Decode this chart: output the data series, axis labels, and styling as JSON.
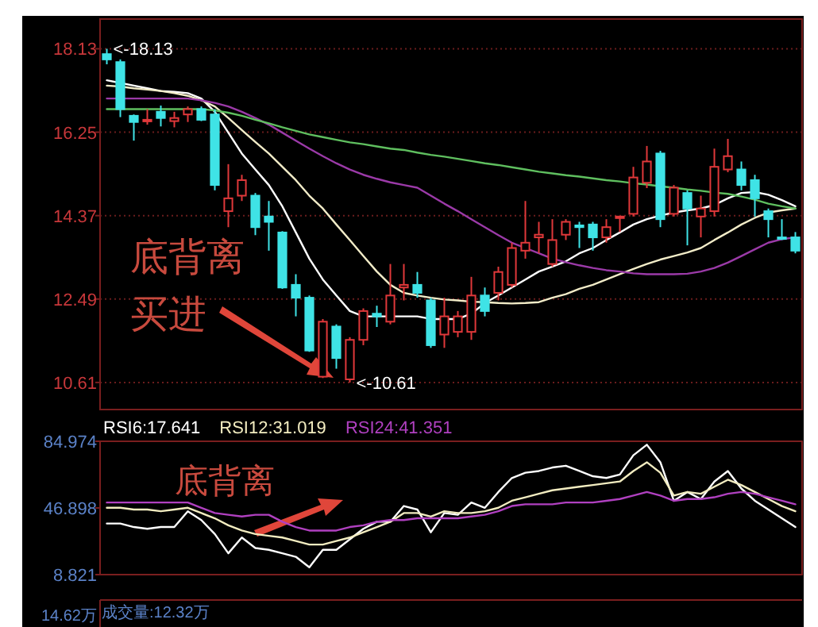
{
  "chart_data": [
    {
      "type": "candlestick",
      "categories": [
        null,
        null,
        null,
        null,
        null,
        null,
        null,
        null,
        null,
        null,
        null,
        null,
        null,
        null,
        null,
        null,
        null,
        null,
        null,
        null,
        null,
        null,
        null,
        null,
        null,
        null,
        null,
        null,
        null,
        null,
        null,
        null,
        null,
        null,
        null,
        null,
        null,
        null,
        null,
        null,
        null,
        null,
        null,
        null,
        null,
        null,
        null,
        null,
        null,
        null,
        null,
        null
      ],
      "ohlc": [
        [
          18.01,
          18.13,
          17.78,
          17.89
        ],
        [
          17.83,
          17.89,
          16.59,
          16.77
        ],
        [
          16.62,
          16.65,
          16.06,
          16.48
        ],
        [
          16.5,
          16.77,
          16.42,
          16.53
        ],
        [
          16.71,
          16.85,
          16.38,
          16.57
        ],
        [
          16.5,
          16.71,
          16.36,
          16.57
        ],
        [
          16.65,
          16.83,
          16.48,
          16.77
        ],
        [
          16.77,
          16.83,
          16.5,
          16.53
        ],
        [
          16.65,
          16.77,
          14.94,
          15.06
        ],
        [
          14.47,
          15.53,
          14.11,
          14.76
        ],
        [
          14.82,
          15.29,
          14.7,
          15.17
        ],
        [
          14.82,
          14.88,
          13.93,
          14.11
        ],
        [
          14.35,
          14.7,
          13.58,
          14.23
        ],
        [
          13.99,
          14.02,
          12.72,
          12.75
        ],
        [
          12.81,
          13.05,
          12.1,
          12.52
        ],
        [
          12.52,
          12.57,
          11.3,
          11.33
        ],
        [
          10.74,
          12.04,
          10.71,
          11.98
        ],
        [
          11.87,
          11.92,
          10.92,
          11.16
        ],
        [
          10.68,
          11.63,
          10.61,
          11.57
        ],
        [
          11.57,
          12.28,
          11.45,
          12.22
        ],
        [
          12.16,
          12.34,
          11.86,
          12.1
        ],
        [
          11.98,
          13.28,
          11.92,
          12.57
        ],
        [
          12.75,
          13.28,
          12.46,
          12.81
        ],
        [
          12.81,
          13.1,
          12.52,
          12.63
        ],
        [
          12.46,
          12.52,
          11.39,
          11.45
        ],
        [
          11.69,
          12.52,
          11.39,
          12.1
        ],
        [
          11.75,
          12.22,
          11.63,
          12.1
        ],
        [
          11.75,
          12.99,
          11.57,
          12.57
        ],
        [
          12.57,
          12.75,
          12.1,
          12.22
        ],
        [
          12.63,
          13.22,
          12.46,
          13.1
        ],
        [
          12.81,
          13.76,
          12.75,
          13.64
        ],
        [
          13.58,
          14.7,
          13.4,
          13.76
        ],
        [
          13.88,
          14.23,
          13.52,
          13.94
        ],
        [
          13.28,
          14.29,
          13.22,
          13.82
        ],
        [
          13.94,
          14.29,
          13.82,
          14.23
        ],
        [
          14.15,
          14.23,
          13.64,
          14.11
        ],
        [
          14.17,
          14.23,
          13.58,
          13.88
        ],
        [
          13.88,
          14.29,
          13.76,
          14.11
        ],
        [
          14.33,
          14.35,
          14.0,
          14.35
        ],
        [
          14.41,
          15.47,
          14.35,
          15.23
        ],
        [
          15.11,
          15.94,
          14.99,
          15.59
        ],
        [
          15.77,
          15.83,
          14.11,
          14.29
        ],
        [
          14.41,
          15.06,
          14.35,
          15.0
        ],
        [
          14.88,
          14.94,
          13.7,
          14.53
        ],
        [
          14.35,
          14.82,
          13.88,
          14.53
        ],
        [
          14.47,
          15.88,
          14.35,
          15.47
        ],
        [
          15.41,
          16.1,
          15.35,
          15.71
        ],
        [
          15.41,
          15.59,
          14.94,
          15.06
        ],
        [
          15.17,
          15.29,
          14.35,
          14.76
        ],
        [
          14.47,
          14.53,
          13.88,
          14.29
        ],
        [
          13.88,
          14.29,
          13.82,
          13.86
        ],
        [
          13.88,
          14.0,
          13.52,
          13.58
        ]
      ],
      "series": [
        {
          "type": "line",
          "color": "#ffffff",
          "values": [
            17.42,
            17.36,
            17.3,
            17.24,
            17.18,
            17.16,
            17.13,
            17.01,
            16.71,
            16.24,
            15.77,
            15.41,
            15.06,
            14.58,
            13.99,
            13.4,
            12.93,
            12.57,
            12.22,
            12.1,
            12.1,
            12.1,
            12.1,
            12.1,
            12.04,
            12.04,
            12.04,
            12.16,
            12.4,
            12.57,
            12.75,
            12.93,
            13.11,
            13.22,
            13.34,
            13.52,
            13.64,
            13.82,
            13.99,
            14.17,
            14.29,
            14.37,
            14.44,
            14.49,
            14.53,
            14.61,
            14.76,
            14.88,
            14.9,
            14.84,
            14.72,
            14.58
          ]
        },
        {
          "type": "line",
          "color": "#f2ecc8",
          "values": [
            17.3,
            17.28,
            17.24,
            17.21,
            17.18,
            17.13,
            17.07,
            16.97,
            16.83,
            16.57,
            16.3,
            16.03,
            15.77,
            15.47,
            15.17,
            14.82,
            14.53,
            14.17,
            13.82,
            13.46,
            13.11,
            12.81,
            12.63,
            12.57,
            12.52,
            12.48,
            12.46,
            12.43,
            12.42,
            12.4,
            12.39,
            12.4,
            12.42,
            12.52,
            12.6,
            12.72,
            12.81,
            12.93,
            13.05,
            13.17,
            13.28,
            13.38,
            13.46,
            13.54,
            13.64,
            13.82,
            13.99,
            14.17,
            14.32,
            14.44,
            14.49,
            14.53
          ]
        },
        {
          "type": "line",
          "color": "#9b3aa8",
          "values": [
            17.01,
            17.01,
            17.01,
            17.01,
            17.01,
            17.01,
            17.01,
            16.97,
            16.91,
            16.83,
            16.71,
            16.57,
            16.42,
            16.24,
            16.06,
            15.88,
            15.71,
            15.55,
            15.41,
            15.29,
            15.2,
            15.12,
            15.06,
            15.0,
            14.82,
            14.64,
            14.47,
            14.29,
            14.11,
            13.93,
            13.76,
            13.64,
            13.52,
            13.4,
            13.32,
            13.25,
            13.19,
            13.14,
            13.11,
            13.07,
            13.05,
            13.05,
            13.05,
            13.06,
            13.11,
            13.19,
            13.31,
            13.46,
            13.61,
            13.76,
            13.84,
            13.88
          ]
        },
        {
          "type": "line",
          "color": "#5fbf5f",
          "values": [
            16.77,
            16.77,
            16.77,
            16.77,
            16.77,
            16.77,
            16.77,
            16.77,
            16.74,
            16.69,
            16.62,
            16.53,
            16.45,
            16.36,
            16.28,
            16.2,
            16.14,
            16.08,
            16.02,
            15.98,
            15.93,
            15.88,
            15.85,
            15.79,
            15.74,
            15.7,
            15.65,
            15.6,
            15.55,
            15.51,
            15.46,
            15.41,
            15.36,
            15.32,
            15.28,
            15.25,
            15.21,
            15.17,
            15.14,
            15.1,
            15.07,
            15.03,
            15.0,
            14.96,
            14.93,
            14.89,
            14.86,
            14.8,
            14.73,
            14.64,
            14.58,
            14.53
          ]
        }
      ],
      "ylim": [
        10.0,
        18.8
      ],
      "yticks": [
        10.61,
        12.49,
        14.37,
        16.25,
        18.13
      ],
      "grid": "y",
      "annotations": [
        "<-18.13",
        "<-10.61",
        "底背离",
        "买进"
      ]
    },
    {
      "type": "line",
      "categories": [
        null,
        null,
        null,
        null,
        null,
        null,
        null,
        null,
        null,
        null,
        null,
        null,
        null,
        null,
        null,
        null,
        null,
        null,
        null,
        null,
        null,
        null,
        null,
        null,
        null,
        null,
        null,
        null,
        null,
        null,
        null,
        null,
        null,
        null,
        null,
        null,
        null,
        null,
        null,
        null,
        null,
        null,
        null,
        null,
        null,
        null,
        null,
        null,
        null,
        null,
        null,
        null
      ],
      "series": [
        {
          "name": "RSI6:17.641",
          "color": "#ffffff",
          "values": [
            38,
            38,
            36,
            35,
            36,
            36,
            45,
            40,
            32,
            21,
            30,
            24,
            23,
            21,
            19,
            13,
            23,
            23,
            29,
            35,
            39,
            39,
            48,
            46,
            33,
            44,
            43,
            50,
            47,
            56,
            64,
            67,
            68,
            70,
            71,
            68,
            65,
            64,
            66,
            77,
            83,
            73,
            51,
            56,
            52,
            62,
            68,
            58,
            51,
            46,
            41,
            36
          ]
        },
        {
          "name": "RSI12:31.019",
          "color": "#f2ecc0",
          "values": [
            47,
            47,
            46,
            46,
            45,
            46,
            47,
            44,
            41,
            37,
            34,
            32,
            31,
            30,
            28,
            26,
            26,
            28,
            30,
            33,
            36,
            39,
            44,
            44,
            42,
            45,
            44,
            44,
            45,
            47,
            51,
            53,
            55,
            57,
            58,
            59,
            60,
            61,
            62,
            68,
            73,
            67,
            54,
            56,
            55,
            59,
            63,
            60,
            56,
            52,
            48,
            45
          ]
        },
        {
          "name": "RSI24:41.351",
          "color": "#b040c0",
          "values": [
            50,
            50,
            50,
            50,
            50,
            50,
            50,
            47,
            44,
            43,
            42,
            43,
            43,
            39,
            36,
            34,
            34,
            34,
            36,
            37,
            39,
            40,
            40,
            41,
            41,
            41,
            41,
            42,
            43,
            45,
            48,
            49,
            49,
            49,
            50,
            50,
            50,
            51,
            52,
            54,
            56,
            54,
            51,
            52,
            52,
            53,
            55,
            56,
            55,
            53,
            51,
            49
          ]
        }
      ],
      "ylim": [
        8.821,
        84.974
      ],
      "yticks": [
        8.821,
        46.898,
        84.974
      ],
      "legend": "top left",
      "annotations": [
        "底背离"
      ]
    },
    {
      "type": "other",
      "annotations": [
        "14.62万",
        "成交量:12.32万"
      ]
    }
  ]
}
